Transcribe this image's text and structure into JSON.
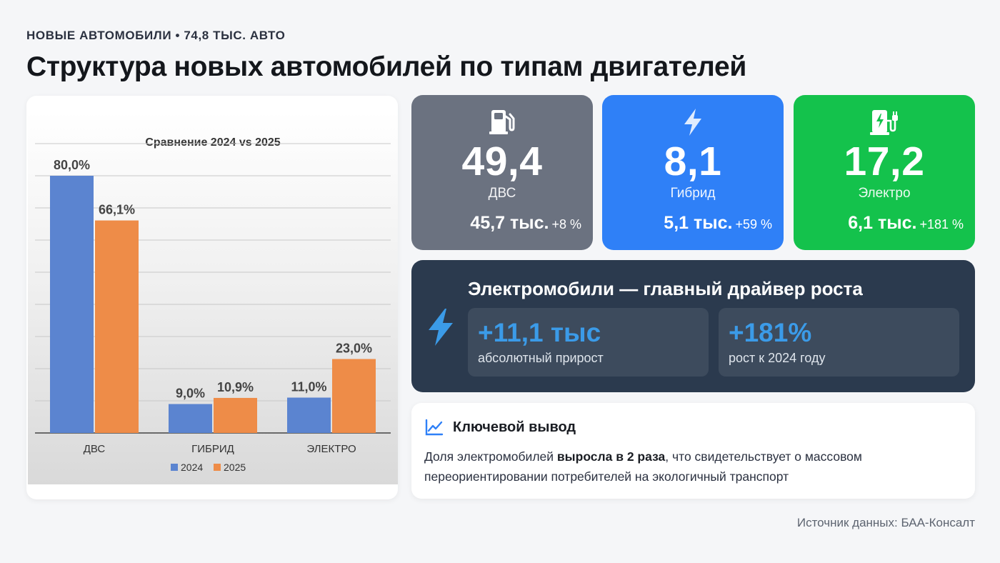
{
  "header": {
    "kicker": "НОВЫЕ АВТОМОБИЛИ • 74,8 ТЫС. АВТО",
    "title": "Структура новых автомобилей по типам двигателей"
  },
  "chart_data": {
    "type": "bar",
    "title": "Сравнение 2024 vs 2025",
    "categories": [
      "ДВС",
      "ГИБРИД",
      "ЭЛЕКТРО"
    ],
    "series": [
      {
        "name": "2024",
        "values": [
          80.0,
          9.0,
          11.0
        ],
        "labels": [
          "80,0%",
          "9,0%",
          "11,0%"
        ],
        "color": "#5b84d0"
      },
      {
        "name": "2025",
        "values": [
          66.1,
          10.9,
          23.0
        ],
        "labels": [
          "66,1%",
          "10,9%",
          "23,0%"
        ],
        "color": "#ee8c48"
      }
    ],
    "ylim": [
      0,
      90
    ],
    "grid": true,
    "legend_position": "bottom"
  },
  "stats": [
    {
      "icon": "fuel-pump-icon",
      "value": "49,4",
      "label": "ДВС",
      "amount": "45,7 тыс.",
      "change": "+8 %",
      "color": "#6b7280"
    },
    {
      "icon": "lightning-icon",
      "value": "8,1",
      "label": "Гибрид",
      "amount": "5,1 тыс.",
      "change": "+59 %",
      "color": "#2f80f7"
    },
    {
      "icon": "ev-charger-icon",
      "value": "17,2",
      "label": "Электро",
      "amount": "6,1 тыс.",
      "change": "+181 %",
      "color": "#14c24c"
    }
  ],
  "driver": {
    "title": "Электромобили — главный драйвер роста",
    "metrics": [
      {
        "value": "+11,1 тыс",
        "label": "абсолютный прирост"
      },
      {
        "value": "+181%",
        "label": "рост к 2024 году"
      }
    ]
  },
  "conclusion": {
    "title": "Ключевой вывод",
    "text_before": "Доля электромобилей ",
    "text_bold": "выросла в 2 раза",
    "text_after": ", что свидетельствует о массовом переориентировании потребителей на экологичный транспорт"
  },
  "source": "Источник данных: БАА-Консалт"
}
